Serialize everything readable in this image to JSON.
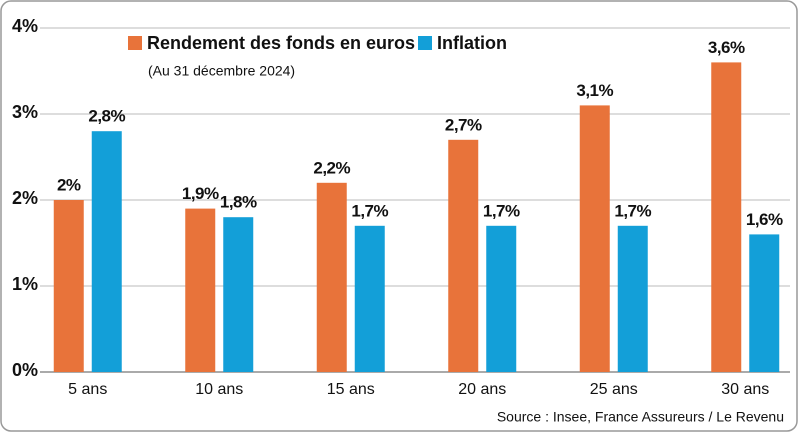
{
  "chart_data": {
    "type": "bar",
    "subtitle": "(Au 31 décembre 2024)",
    "source": "Source : Insee, France Assureurs / Le Revenu",
    "categories": [
      "5 ans",
      "10 ans",
      "15 ans",
      "20 ans",
      "25 ans",
      "30 ans"
    ],
    "series": [
      {
        "name": "Rendement des fonds en euros",
        "color": "#e8733a",
        "values": [
          2,
          1.9,
          2.2,
          2.7,
          3.1,
          3.6
        ],
        "value_labels": [
          "2%",
          "1,9%",
          "2,2%",
          "2,7%",
          "3,1%",
          "3,6%"
        ]
      },
      {
        "name": "Inflation",
        "color": "#139fd8",
        "values": [
          2.8,
          1.8,
          1.7,
          1.7,
          1.7,
          1.6
        ],
        "value_labels": [
          "2,8%",
          "1,8%",
          "1,7%",
          "1,7%",
          "1,7%",
          "1,6%"
        ]
      }
    ],
    "ylim": [
      0,
      4
    ],
    "yticks": [
      {
        "value": 0,
        "label": "0%"
      },
      {
        "value": 1,
        "label": "1%"
      },
      {
        "value": 2,
        "label": "2%"
      },
      {
        "value": 3,
        "label": "3%"
      },
      {
        "value": 4,
        "label": "4%"
      }
    ],
    "grid": true
  }
}
